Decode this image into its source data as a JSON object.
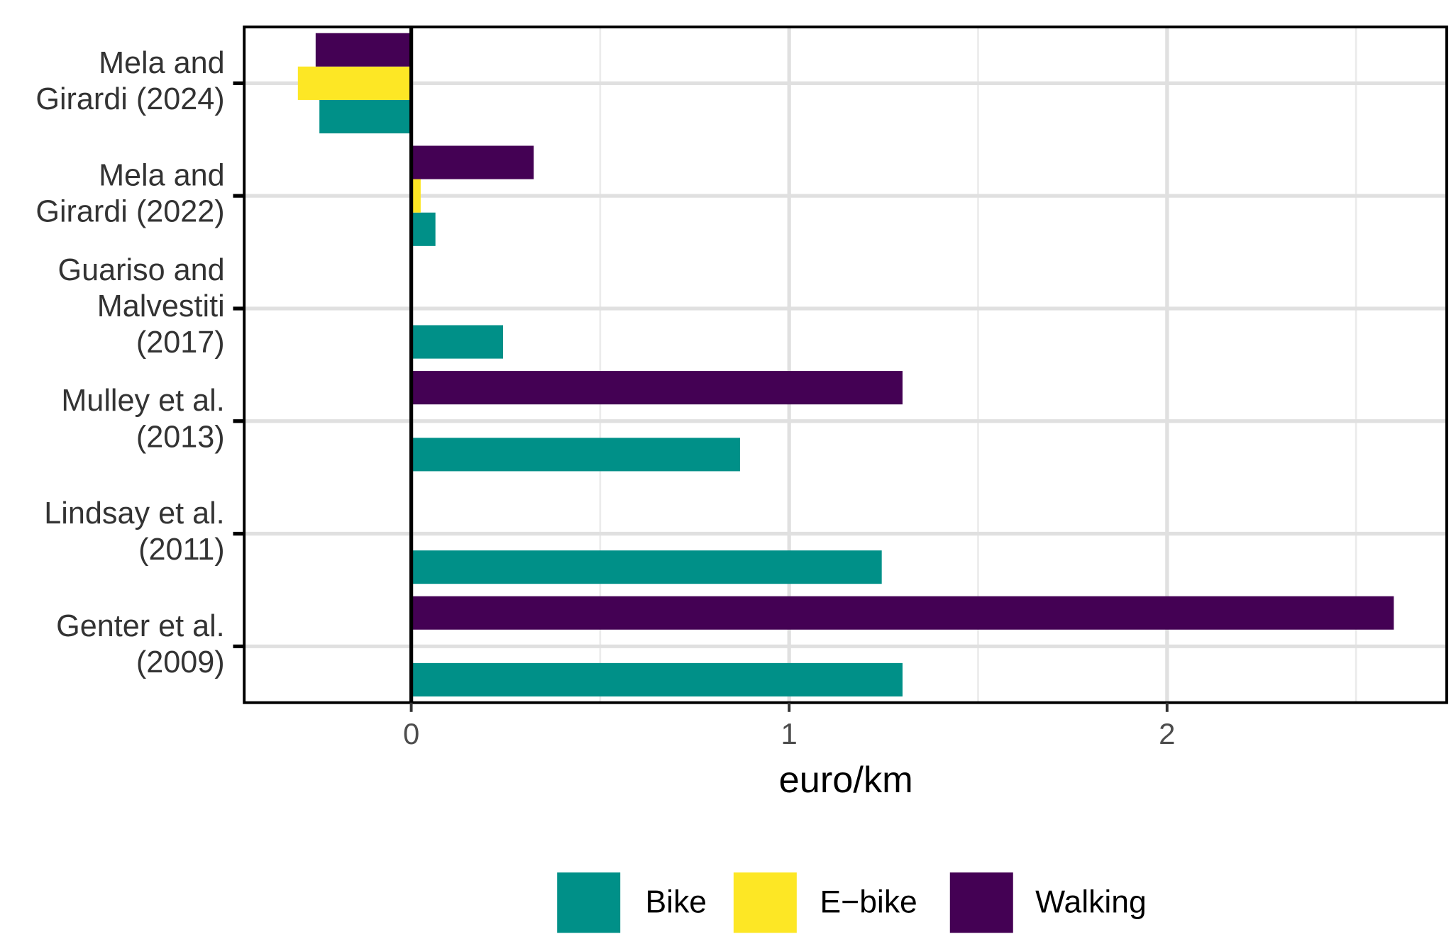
{
  "chart_data": {
    "type": "bar",
    "orientation": "horizontal",
    "categories": [
      "Mela and\nGirardi (2024)",
      "Mela and\nGirardi (2022)",
      "Guariso and\nMalvestiti\n(2017)",
      "Mulley et al.\n(2013)",
      "Lindsay et al.\n(2011)",
      "Genter et al.\n(2009)"
    ],
    "series": [
      {
        "name": "Bike",
        "color": "#009088",
        "values": [
          -0.243,
          0.064,
          0.243,
          0.87,
          1.245,
          1.3
        ]
      },
      {
        "name": "E−bike",
        "color": "#fde725",
        "values": [
          -0.3,
          0.025,
          null,
          null,
          null,
          null
        ]
      },
      {
        "name": "Walking",
        "color": "#440154",
        "values": [
          -0.253,
          0.324,
          null,
          1.3,
          null,
          2.6
        ]
      }
    ],
    "x_label": "euro/km",
    "xlim": [
      -0.442,
      2.74
    ],
    "xticks": [
      0,
      1,
      2
    ],
    "minor_xticks": [
      0.5,
      1.5,
      2.5
    ],
    "reference_line": 0,
    "grid": true,
    "legend_position": "bottom"
  }
}
